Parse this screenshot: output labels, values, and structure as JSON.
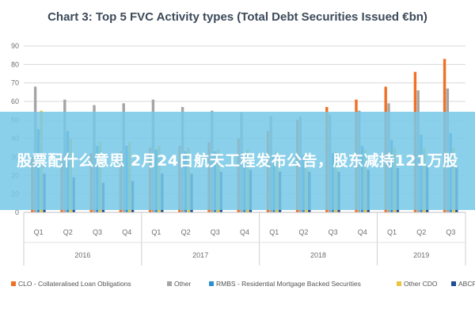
{
  "chart_data": {
    "type": "bar",
    "title": "Chart 3: Top 5 FVC Activity types (Total Debt Securities Issued €bn)",
    "xlabel": "",
    "ylabel": "",
    "ylim": [
      0,
      90
    ],
    "yticks": [
      0,
      10,
      20,
      30,
      40,
      50,
      60,
      70,
      80,
      90
    ],
    "grid": true,
    "legend_position": "bottom",
    "categories": [
      "Q1",
      "Q2",
      "Q3",
      "Q4",
      "Q1",
      "Q2",
      "Q3",
      "Q4",
      "Q1",
      "Q2",
      "Q3",
      "Q4",
      "Q1",
      "Q2",
      "Q3"
    ],
    "groups": [
      {
        "label": "2016",
        "count": 4
      },
      {
        "label": "2017",
        "count": 4
      },
      {
        "label": "2018",
        "count": 4
      },
      {
        "label": "2019",
        "count": 3
      }
    ],
    "series": [
      {
        "name": "CLO - Collateralised Loan Obligations",
        "color": "#f07125",
        "values": [
          30,
          31,
          32,
          33,
          35,
          36,
          38,
          40,
          44,
          50,
          57,
          61,
          68,
          76,
          83
        ]
      },
      {
        "name": "Other",
        "color": "#a5a5a5",
        "values": [
          68,
          61,
          58,
          59,
          61,
          57,
          55,
          54,
          52,
          52,
          53,
          55,
          59,
          66,
          67
        ]
      },
      {
        "name": "RMBS - Residential Mortgage Backed Securities",
        "color": "#2e8fcf",
        "values": [
          45,
          44,
          36,
          36,
          34,
          33,
          33,
          32,
          31,
          31,
          32,
          36,
          39,
          42,
          43
        ]
      },
      {
        "name": "Other CDO",
        "color": "#e9c53d",
        "values": [
          55,
          40,
          38,
          38,
          36,
          35,
          34,
          34,
          33,
          32,
          33,
          34,
          35,
          35,
          35
        ]
      },
      {
        "name": "ABCP",
        "color": "#1e4e96",
        "values": [
          21,
          19,
          16,
          17,
          21,
          21,
          22,
          23,
          22,
          22,
          22,
          23,
          24,
          25,
          25
        ]
      }
    ]
  },
  "banner": {
    "text": "股票配什么意思 2月24日航天工程发布公告，股东减持121万股"
  }
}
